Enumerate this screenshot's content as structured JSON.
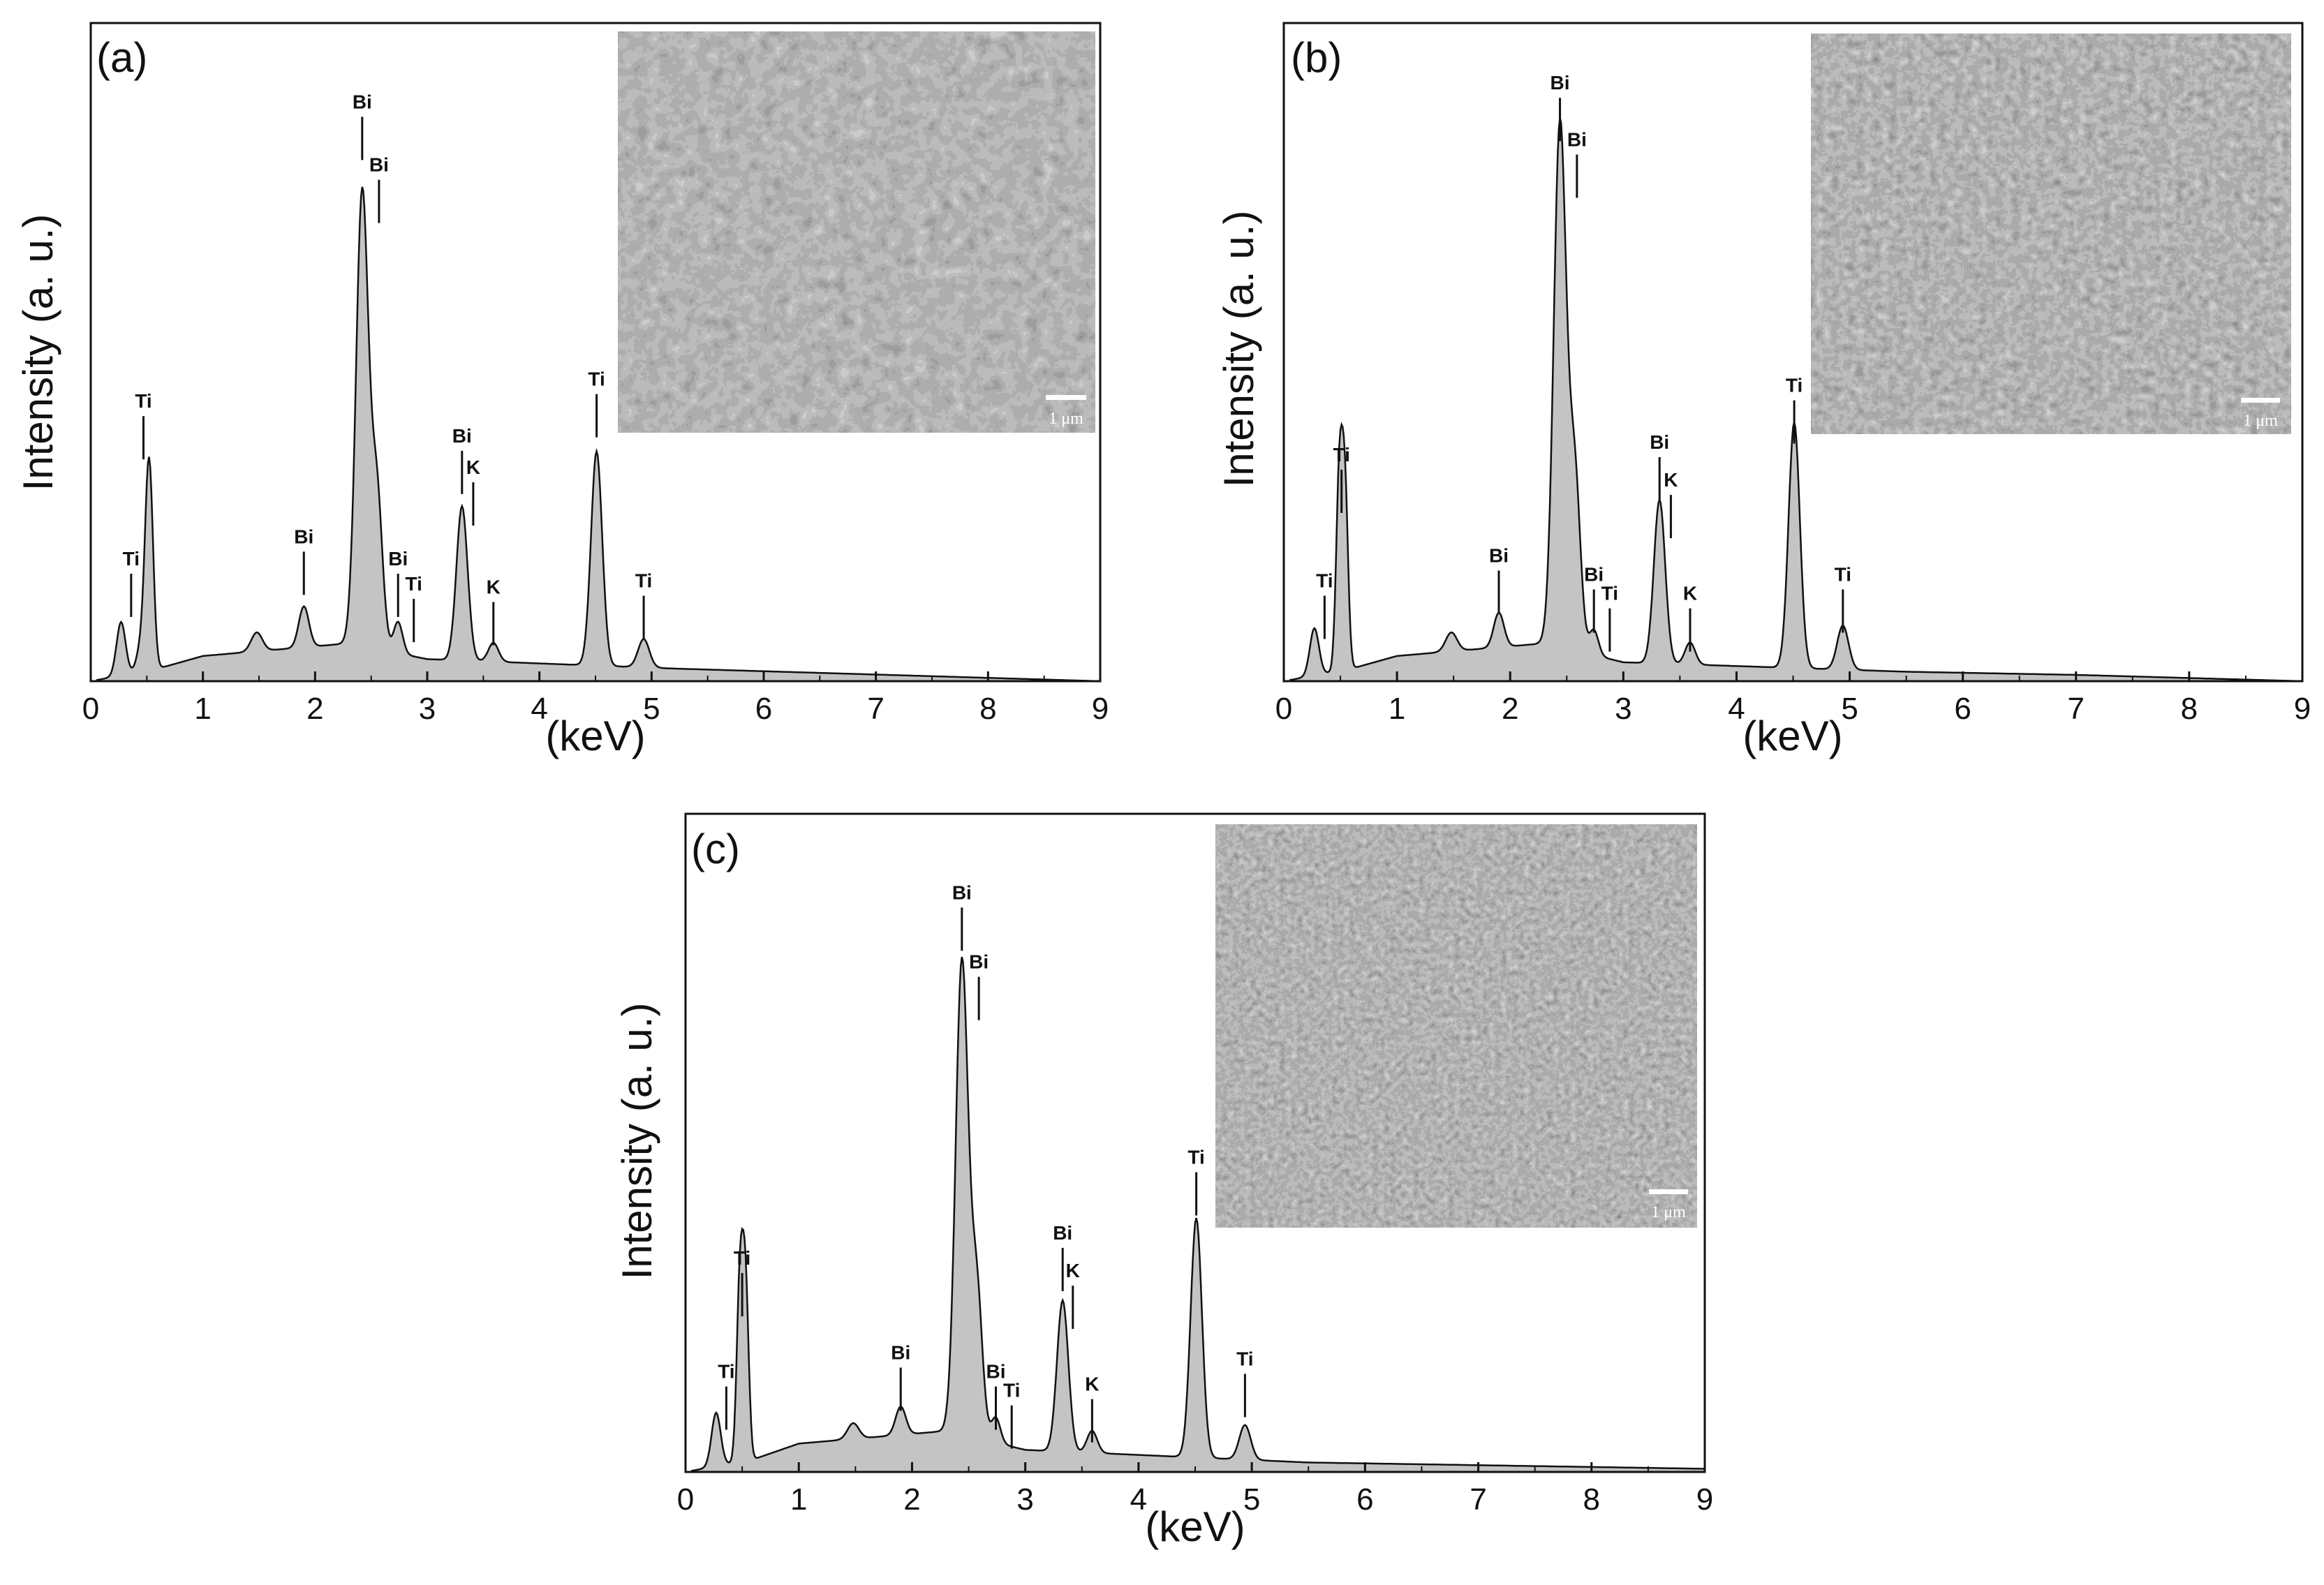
{
  "colors": {
    "fill": "#c4c4c4",
    "line": "#111111",
    "frame": "#111111",
    "inset_bg": "#5e5e5e"
  },
  "chart_data": [
    {
      "type": "area",
      "panel_label": "(a)",
      "xlabel": "(keV)",
      "ylabel": "Intensity (a. u.)",
      "xlim": [
        0,
        9
      ],
      "ylim": [
        0,
        1.0
      ],
      "xticks": [
        "0",
        "1",
        "2",
        "3",
        "4",
        "5",
        "6",
        "7",
        "8",
        "9"
      ],
      "peaks": [
        {
          "x": 0.27,
          "y": 0.085,
          "w": 0.04
        },
        {
          "x": 0.45,
          "y": 0.04,
          "w": 0.04
        },
        {
          "x": 0.52,
          "y": 0.33,
          "w": 0.035
        },
        {
          "x": 1.48,
          "y": 0.03,
          "w": 0.05
        },
        {
          "x": 1.9,
          "y": 0.065,
          "w": 0.045
        },
        {
          "x": 2.42,
          "y": 0.72,
          "w": 0.055
        },
        {
          "x": 2.55,
          "y": 0.25,
          "w": 0.05
        },
        {
          "x": 2.74,
          "y": 0.05,
          "w": 0.04
        },
        {
          "x": 3.31,
          "y": 0.245,
          "w": 0.05
        },
        {
          "x": 3.59,
          "y": 0.03,
          "w": 0.045
        },
        {
          "x": 4.51,
          "y": 0.34,
          "w": 0.05
        },
        {
          "x": 4.93,
          "y": 0.045,
          "w": 0.05
        }
      ],
      "background": [
        [
          0,
          0.0
        ],
        [
          0.6,
          0.02
        ],
        [
          1.0,
          0.04
        ],
        [
          2.3,
          0.06
        ],
        [
          3.0,
          0.035
        ],
        [
          5.2,
          0.02
        ],
        [
          9.0,
          0.0
        ]
      ],
      "annotations": [
        {
          "label": "Ti",
          "x": 0.36,
          "y": 0.175
        },
        {
          "label": "Ti",
          "x": 0.47,
          "y": 0.425
        },
        {
          "label": "Bi",
          "x": 1.9,
          "y": 0.21
        },
        {
          "label": "Bi",
          "x": 2.42,
          "y": 0.9
        },
        {
          "label": "Bi",
          "x": 2.57,
          "y": 0.8
        },
        {
          "label": "Bi",
          "x": 2.74,
          "y": 0.175
        },
        {
          "label": "Ti",
          "x": 2.88,
          "y": 0.135
        },
        {
          "label": "Bi",
          "x": 3.31,
          "y": 0.37
        },
        {
          "label": "K",
          "x": 3.41,
          "y": 0.32
        },
        {
          "label": "K",
          "x": 3.59,
          "y": 0.13
        },
        {
          "label": "Ti",
          "x": 4.51,
          "y": 0.46
        },
        {
          "label": "Ti",
          "x": 4.93,
          "y": 0.14
        }
      ],
      "inset": {
        "scale_label": "1 μm"
      }
    },
    {
      "type": "area",
      "panel_label": "(b)",
      "xlabel": "(keV)",
      "ylabel": "Intensity (a. u.)",
      "xlim": [
        0,
        9
      ],
      "ylim": [
        0,
        1.0
      ],
      "xticks": [
        "0",
        "1",
        "2",
        "3",
        "4",
        "5",
        "6",
        "7",
        "8",
        "9"
      ],
      "peaks": [
        {
          "x": 0.27,
          "y": 0.075,
          "w": 0.04
        },
        {
          "x": 0.49,
          "y": 0.3,
          "w": 0.028
        },
        {
          "x": 0.54,
          "y": 0.28,
          "w": 0.028
        },
        {
          "x": 1.48,
          "y": 0.03,
          "w": 0.05
        },
        {
          "x": 1.9,
          "y": 0.055,
          "w": 0.045
        },
        {
          "x": 2.44,
          "y": 0.83,
          "w": 0.055
        },
        {
          "x": 2.57,
          "y": 0.28,
          "w": 0.05
        },
        {
          "x": 2.74,
          "y": 0.04,
          "w": 0.04
        },
        {
          "x": 3.32,
          "y": 0.26,
          "w": 0.05
        },
        {
          "x": 3.59,
          "y": 0.035,
          "w": 0.045
        },
        {
          "x": 4.51,
          "y": 0.39,
          "w": 0.05
        },
        {
          "x": 4.94,
          "y": 0.07,
          "w": 0.05
        }
      ],
      "background": [
        [
          0,
          0.0
        ],
        [
          0.6,
          0.02
        ],
        [
          1.0,
          0.04
        ],
        [
          2.3,
          0.06
        ],
        [
          3.0,
          0.03
        ],
        [
          5.5,
          0.015
        ],
        [
          7.0,
          0.01
        ],
        [
          9.0,
          0.0
        ]
      ],
      "annotations": [
        {
          "label": "Ti",
          "x": 0.36,
          "y": 0.14
        },
        {
          "label": "Ti",
          "x": 0.51,
          "y": 0.34
        },
        {
          "label": "Bi",
          "x": 1.9,
          "y": 0.18
        },
        {
          "label": "Bi",
          "x": 2.44,
          "y": 0.93
        },
        {
          "label": "Bi",
          "x": 2.59,
          "y": 0.84
        },
        {
          "label": "Bi",
          "x": 2.74,
          "y": 0.15
        },
        {
          "label": "Ti",
          "x": 2.88,
          "y": 0.12
        },
        {
          "label": "Bi",
          "x": 3.32,
          "y": 0.36
        },
        {
          "label": "K",
          "x": 3.42,
          "y": 0.3
        },
        {
          "label": "K",
          "x": 3.59,
          "y": 0.12
        },
        {
          "label": "Ti",
          "x": 4.51,
          "y": 0.45
        },
        {
          "label": "Ti",
          "x": 4.94,
          "y": 0.15
        }
      ],
      "inset": {
        "scale_label": "1 μm"
      }
    },
    {
      "type": "area",
      "panel_label": "(c)",
      "xlabel": "(keV)",
      "ylabel": "Intensity (a. u.)",
      "xlim": [
        0,
        9
      ],
      "ylim": [
        0,
        1.0
      ],
      "xticks": [
        "0",
        "1",
        "2",
        "3",
        "4",
        "5",
        "6",
        "7",
        "8",
        "9"
      ],
      "peaks": [
        {
          "x": 0.27,
          "y": 0.085,
          "w": 0.04
        },
        {
          "x": 0.48,
          "y": 0.28,
          "w": 0.028
        },
        {
          "x": 0.53,
          "y": 0.27,
          "w": 0.028
        },
        {
          "x": 1.48,
          "y": 0.025,
          "w": 0.05
        },
        {
          "x": 1.9,
          "y": 0.045,
          "w": 0.045
        },
        {
          "x": 2.44,
          "y": 0.75,
          "w": 0.055
        },
        {
          "x": 2.57,
          "y": 0.24,
          "w": 0.05
        },
        {
          "x": 2.74,
          "y": 0.04,
          "w": 0.04
        },
        {
          "x": 3.33,
          "y": 0.24,
          "w": 0.05
        },
        {
          "x": 3.59,
          "y": 0.035,
          "w": 0.045
        },
        {
          "x": 4.51,
          "y": 0.38,
          "w": 0.05
        },
        {
          "x": 4.94,
          "y": 0.055,
          "w": 0.05
        }
      ],
      "background": [
        [
          0,
          0.0
        ],
        [
          0.6,
          0.02
        ],
        [
          1.0,
          0.045
        ],
        [
          2.3,
          0.065
        ],
        [
          3.0,
          0.035
        ],
        [
          5.5,
          0.015
        ],
        [
          9.0,
          0.005
        ]
      ],
      "annotations": [
        {
          "label": "Ti",
          "x": 0.36,
          "y": 0.14
        },
        {
          "label": "Ti",
          "x": 0.5,
          "y": 0.32
        },
        {
          "label": "Bi",
          "x": 1.9,
          "y": 0.17
        },
        {
          "label": "Bi",
          "x": 2.44,
          "y": 0.9
        },
        {
          "label": "Bi",
          "x": 2.59,
          "y": 0.79
        },
        {
          "label": "Bi",
          "x": 2.74,
          "y": 0.14
        },
        {
          "label": "Ti",
          "x": 2.88,
          "y": 0.11
        },
        {
          "label": "Bi",
          "x": 3.33,
          "y": 0.36
        },
        {
          "label": "K",
          "x": 3.42,
          "y": 0.3
        },
        {
          "label": "K",
          "x": 3.59,
          "y": 0.12
        },
        {
          "label": "Ti",
          "x": 4.51,
          "y": 0.48
        },
        {
          "label": "Ti",
          "x": 4.94,
          "y": 0.16
        }
      ],
      "inset": {
        "scale_label": "1 μm"
      }
    }
  ]
}
